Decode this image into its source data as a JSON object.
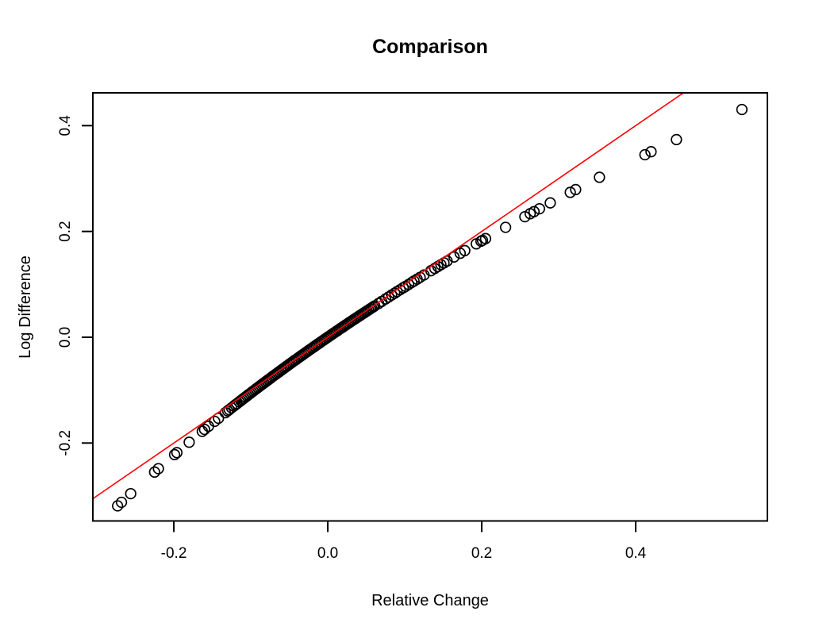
{
  "page": {
    "background": "#ffffff",
    "foreground": "#000000"
  },
  "chart_data": {
    "type": "scatter",
    "title": "Comparison",
    "xlabel": "Relative Change",
    "ylabel": "Log Difference",
    "x_tick_labels": [
      "-0.2",
      "0.0",
      "0.2",
      "0.4"
    ],
    "x_tick_values": [
      -0.2,
      0.0,
      0.2,
      0.4
    ],
    "y_tick_labels": [
      "-0.2",
      "0.0",
      "0.2",
      "0.4"
    ],
    "y_tick_values": [
      -0.2,
      0.0,
      0.2,
      0.4
    ],
    "x_range": [
      -0.3052,
      0.5711
    ],
    "y_range": [
      -0.3473,
      0.462
    ],
    "grid": false,
    "legend": false,
    "marker": {
      "shape": "open-circle",
      "color": "#000000",
      "radius_px": 6.3,
      "stroke_px": 1.7
    },
    "reference_line": {
      "slope": 1,
      "intercept": 0,
      "color": "#ff0000"
    },
    "points": [
      [
        -0.273,
        -0.3188
      ],
      [
        -0.268,
        -0.312
      ],
      [
        -0.256,
        -0.2957
      ],
      [
        -0.225,
        -0.2549
      ],
      [
        -0.22,
        -0.2485
      ],
      [
        -0.199,
        -0.2219
      ],
      [
        -0.196,
        -0.2182
      ],
      [
        -0.18,
        -0.1985
      ],
      [
        -0.163,
        -0.1779
      ],
      [
        -0.16,
        -0.1744
      ],
      [
        -0.155,
        -0.1684
      ],
      [
        -0.147,
        -0.159
      ],
      [
        -0.142,
        -0.1532
      ],
      [
        -0.133,
        -0.1427
      ],
      [
        -0.13,
        -0.1393
      ],
      [
        -0.128,
        -0.137
      ],
      [
        -0.125,
        -0.1335
      ],
      [
        -0.122,
        -0.1301
      ],
      [
        -0.12,
        -0.1278
      ],
      [
        -0.118,
        -0.1256
      ],
      [
        -0.115,
        -0.1222
      ],
      [
        -0.113,
        -0.1199
      ],
      [
        -0.111,
        -0.1177
      ],
      [
        -0.109,
        -0.1154
      ],
      [
        -0.107,
        -0.1132
      ],
      [
        -0.105,
        -0.1109
      ],
      [
        -0.103,
        -0.1087
      ],
      [
        -0.101,
        -0.1065
      ],
      [
        -0.099,
        -0.1042
      ],
      [
        -0.097,
        -0.102
      ],
      [
        -0.095,
        -0.0998
      ],
      [
        -0.093,
        -0.0976
      ],
      [
        -0.091,
        -0.0954
      ],
      [
        -0.089,
        -0.0932
      ],
      [
        -0.087,
        -0.091
      ],
      [
        -0.085,
        -0.0888
      ],
      [
        -0.083,
        -0.0866
      ],
      [
        -0.081,
        -0.0845
      ],
      [
        -0.079,
        -0.0823
      ],
      [
        -0.077,
        -0.0801
      ],
      [
        -0.075,
        -0.078
      ],
      [
        -0.073,
        -0.0758
      ],
      [
        -0.071,
        -0.0736
      ],
      [
        -0.069,
        -0.0715
      ],
      [
        -0.067,
        -0.0694
      ],
      [
        -0.065,
        -0.0672
      ],
      [
        -0.063,
        -0.0651
      ],
      [
        -0.061,
        -0.0629
      ],
      [
        -0.059,
        -0.0608
      ],
      [
        -0.057,
        -0.0587
      ],
      [
        -0.055,
        -0.0566
      ],
      [
        -0.053,
        -0.0545
      ],
      [
        -0.051,
        -0.0523
      ],
      [
        -0.049,
        -0.0502
      ],
      [
        -0.047,
        -0.0481
      ],
      [
        -0.045,
        -0.046
      ],
      [
        -0.043,
        -0.0439
      ],
      [
        -0.041,
        -0.0419
      ],
      [
        -0.039,
        -0.0398
      ],
      [
        -0.037,
        -0.0377
      ],
      [
        -0.035,
        -0.0356
      ],
      [
        -0.033,
        -0.0336
      ],
      [
        -0.031,
        -0.0315
      ],
      [
        -0.029,
        -0.0294
      ],
      [
        -0.027,
        -0.0274
      ],
      [
        -0.025,
        -0.0253
      ],
      [
        -0.023,
        -0.0233
      ],
      [
        -0.021,
        -0.0212
      ],
      [
        -0.019,
        -0.0192
      ],
      [
        -0.017,
        -0.0171
      ],
      [
        -0.015,
        -0.0151
      ],
      [
        -0.013,
        -0.0131
      ],
      [
        -0.011,
        -0.0111
      ],
      [
        -0.009,
        -0.009
      ],
      [
        -0.007,
        -0.007
      ],
      [
        -0.005,
        -0.005
      ],
      [
        -0.003,
        -0.003
      ],
      [
        -0.001,
        -0.001
      ],
      [
        0.001,
        0.001
      ],
      [
        0.003,
        0.003
      ],
      [
        0.005,
        0.005
      ],
      [
        0.007,
        0.007
      ],
      [
        0.009,
        0.009
      ],
      [
        0.011,
        0.0109
      ],
      [
        0.013,
        0.0129
      ],
      [
        0.015,
        0.0149
      ],
      [
        0.017,
        0.0169
      ],
      [
        0.019,
        0.0188
      ],
      [
        0.021,
        0.0208
      ],
      [
        0.023,
        0.0227
      ],
      [
        0.025,
        0.0247
      ],
      [
        0.027,
        0.0266
      ],
      [
        0.029,
        0.0286
      ],
      [
        0.031,
        0.0305
      ],
      [
        0.033,
        0.0325
      ],
      [
        0.035,
        0.0344
      ],
      [
        0.037,
        0.0363
      ],
      [
        0.039,
        0.0383
      ],
      [
        0.041,
        0.0402
      ],
      [
        0.043,
        0.0421
      ],
      [
        0.045,
        0.044
      ],
      [
        0.047,
        0.0459
      ],
      [
        0.049,
        0.0478
      ],
      [
        0.051,
        0.0497
      ],
      [
        0.053,
        0.0516
      ],
      [
        0.055,
        0.0535
      ],
      [
        0.057,
        0.0554
      ],
      [
        0.059,
        0.0573
      ],
      [
        0.061,
        0.0592
      ],
      [
        0.066,
        0.0639
      ],
      [
        0.07,
        0.0677
      ],
      [
        0.075,
        0.0723
      ],
      [
        0.079,
        0.076
      ],
      [
        0.083,
        0.0798
      ],
      [
        0.087,
        0.0834
      ],
      [
        0.09,
        0.0862
      ],
      [
        0.094,
        0.0899
      ],
      [
        0.098,
        0.0935
      ],
      [
        0.101,
        0.0962
      ],
      [
        0.105,
        0.0998
      ],
      [
        0.109,
        0.1035
      ],
      [
        0.112,
        0.1062
      ],
      [
        0.116,
        0.1098
      ],
      [
        0.12,
        0.1133
      ],
      [
        0.125,
        0.1178
      ],
      [
        0.134,
        0.1257
      ],
      [
        0.139,
        0.1301
      ],
      [
        0.143,
        0.1337
      ],
      [
        0.147,
        0.1371
      ],
      [
        0.151,
        0.1406
      ],
      [
        0.155,
        0.1441
      ],
      [
        0.164,
        0.1518
      ],
      [
        0.172,
        0.1587
      ],
      [
        0.178,
        0.1638
      ],
      [
        0.193,
        0.1765
      ],
      [
        0.199,
        0.1815
      ],
      [
        0.201,
        0.1832
      ],
      [
        0.205,
        0.1865
      ],
      [
        0.231,
        0.2078
      ],
      [
        0.256,
        0.2279
      ],
      [
        0.263,
        0.2335
      ],
      [
        0.268,
        0.2374
      ],
      [
        0.275,
        0.2429
      ],
      [
        0.289,
        0.2539
      ],
      [
        0.315,
        0.2739
      ],
      [
        0.322,
        0.2792
      ],
      [
        0.353,
        0.3024
      ],
      [
        0.412,
        0.345
      ],
      [
        0.42,
        0.3507
      ],
      [
        0.453,
        0.3737
      ],
      [
        0.538,
        0.4305
      ]
    ]
  }
}
